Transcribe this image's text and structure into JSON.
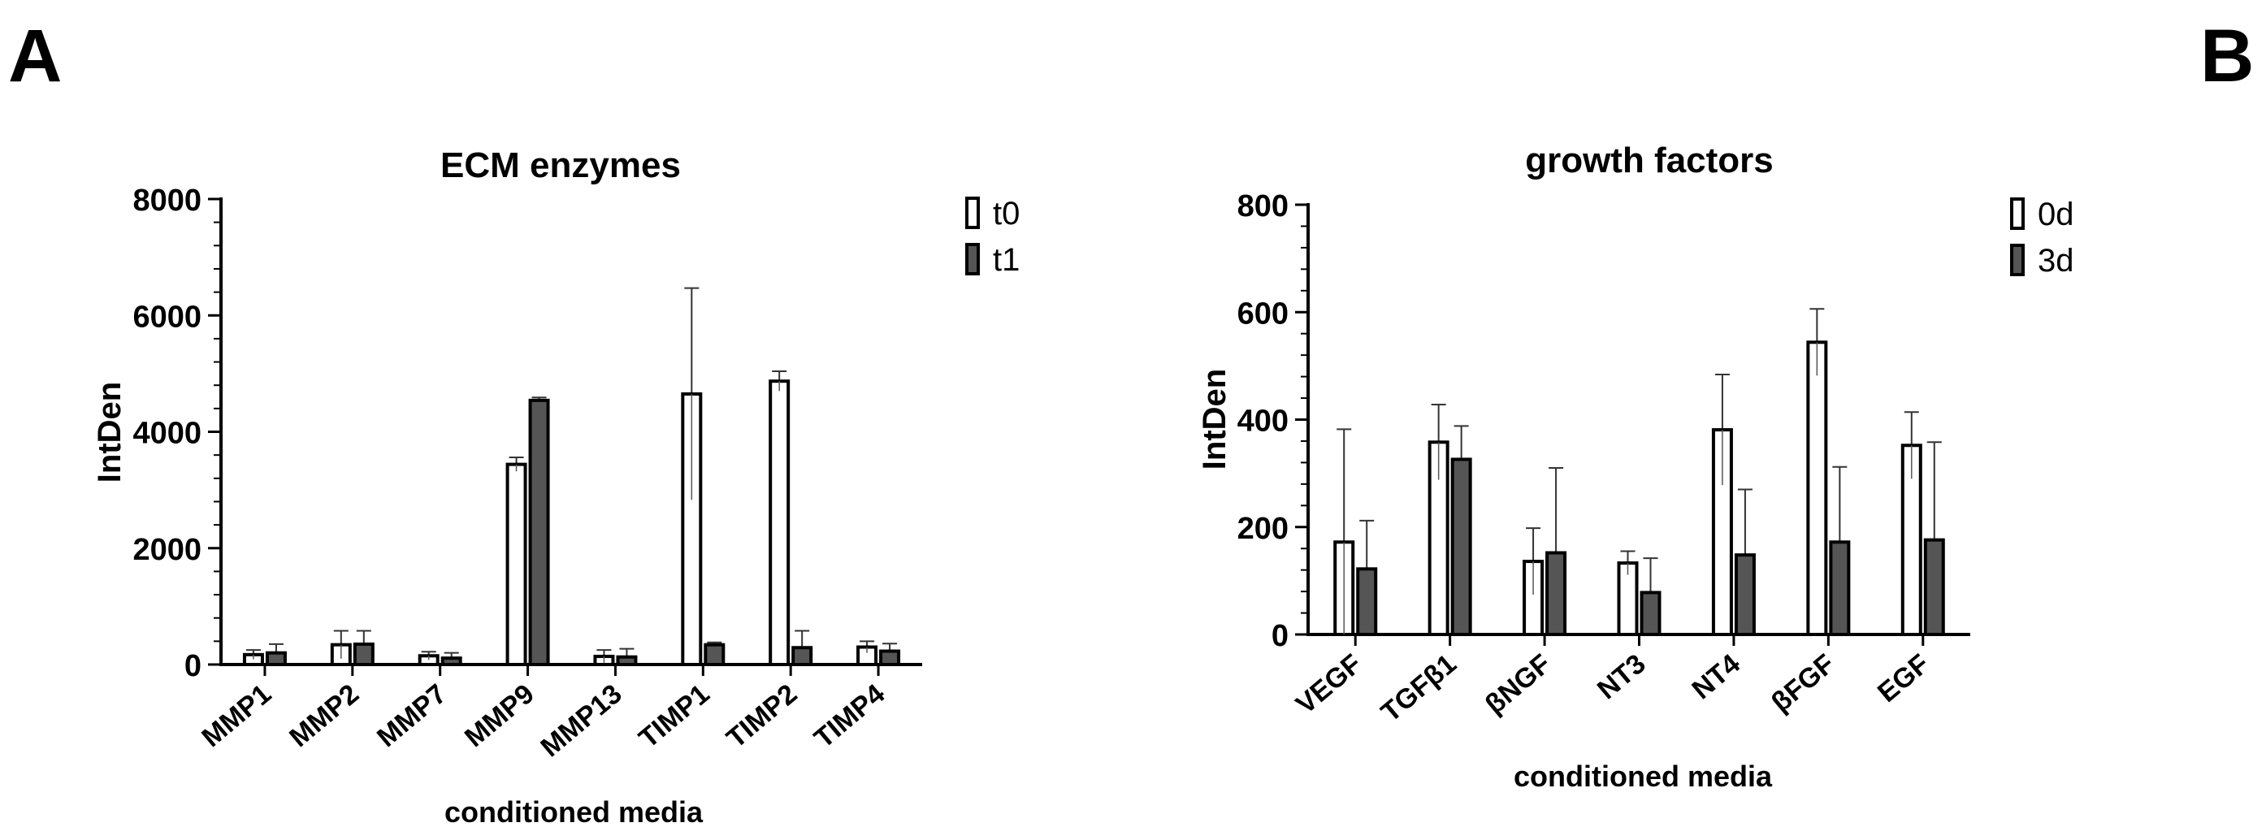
{
  "figure": {
    "panel_labels": [
      "A",
      "B"
    ]
  },
  "chart_data": [
    {
      "type": "bar",
      "title": "ECM enzymes",
      "xlabel": "conditioned media",
      "ylabel": "IntDen",
      "ylim": [
        0,
        8000
      ],
      "yticks": [
        0,
        2000,
        4000,
        6000,
        8000
      ],
      "ytick_labels": [
        "0",
        "2000",
        "4000",
        "6000",
        "8000"
      ],
      "categories": [
        "MMP1",
        "MMP2",
        "MMP7",
        "MMP9",
        "MMP13",
        "TIMP1",
        "TIMP2",
        "TIMP4"
      ],
      "series": [
        {
          "name": "t0",
          "fill": "#ffffff",
          "values": [
            170,
            340,
            150,
            3440,
            140,
            4650,
            4870,
            300
          ],
          "error": [
            80,
            240,
            70,
            120,
            110,
            1820,
            170,
            100
          ]
        },
        {
          "name": "t1",
          "fill": "#555555",
          "values": [
            200,
            350,
            110,
            4540,
            130,
            340,
            290,
            230
          ],
          "error": [
            150,
            230,
            90,
            50,
            140,
            40,
            290,
            130
          ]
        }
      ],
      "legend": "top-right",
      "grid": false
    },
    {
      "type": "bar",
      "title": "growth factors",
      "xlabel": "conditioned media",
      "ylabel": "IntDen",
      "ylim": [
        0,
        800
      ],
      "yticks": [
        0,
        200,
        400,
        600,
        800
      ],
      "ytick_labels": [
        "0",
        "200",
        "400",
        "600",
        "800"
      ],
      "categories": [
        "VEGF",
        "TGFβ1",
        "βNGF",
        "NT3",
        "NT4",
        "βFGF",
        "EGF"
      ],
      "series": [
        {
          "name": "0d",
          "fill": "#ffffff",
          "values": [
            172,
            358,
            136,
            133,
            381,
            544,
            352
          ],
          "error": [
            210,
            70,
            62,
            22,
            103,
            62,
            62
          ]
        },
        {
          "name": "3d",
          "fill": "#555555",
          "values": [
            122,
            326,
            152,
            78,
            148,
            172,
            176
          ],
          "error": [
            90,
            62,
            158,
            64,
            122,
            140,
            182
          ]
        }
      ],
      "legend": "top-right",
      "grid": false
    }
  ]
}
